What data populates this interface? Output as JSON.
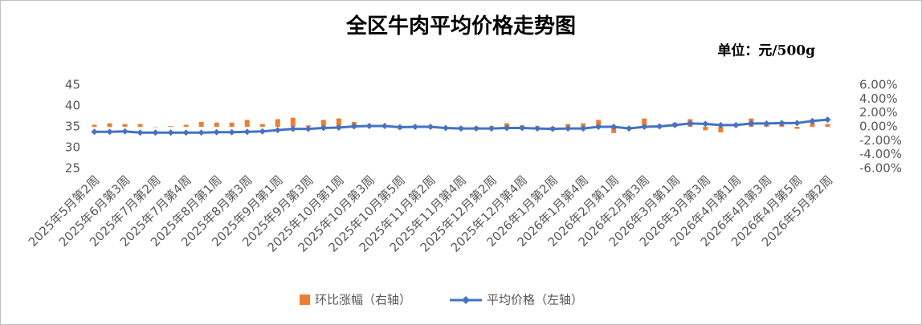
{
  "chart_data": {
    "type": "combo",
    "title": "全区牛肉平均价格走势图",
    "subtitle": "单位：元/500g",
    "categories": [
      "2025年5月第2周",
      null,
      "2025年6月第3周",
      null,
      "2025年7月第2周",
      null,
      "2025年7月第4周",
      null,
      "2025年8月第1周",
      null,
      "2025年8月第3周",
      null,
      "2025年9月第1周",
      null,
      "2025年9月第3周",
      null,
      "2025年10月第1周",
      null,
      "2025年10月第3周",
      null,
      "2025年10月第5周",
      null,
      "2025年11月第2周",
      null,
      "2025年11月第4周",
      null,
      "2025年12月第2周",
      null,
      "2025年12月第4周",
      null,
      "2026年1月第2周",
      null,
      "2026年1月第4周",
      null,
      "2026年2月第1周",
      null,
      "2026年2月第3周",
      null,
      "2026年3月第1周",
      null,
      "2026年3月第3周",
      null,
      "2026年4月第1周",
      null,
      "2026年4月第3周",
      null,
      "2026年4月第5周",
      null,
      "2026年5月第2周"
    ],
    "series": [
      {
        "name": "环比涨幅（右轴）",
        "type": "bar",
        "axis": "y2",
        "color": "#ed7d31",
        "values": [
          0.3,
          0.5,
          0.4,
          0.4,
          0.0,
          0.1,
          0.3,
          0.7,
          0.6,
          0.6,
          1.0,
          0.4,
          1.1,
          1.3,
          0.2,
          1.0,
          1.2,
          0.7,
          0.3,
          0.1,
          -0.3,
          0.1,
          0.0,
          -0.2,
          -0.1,
          0.0,
          0.1,
          0.5,
          0.2,
          0.1,
          -0.2,
          0.4,
          0.5,
          1.0,
          -0.9,
          -0.3,
          1.2,
          0.3,
          0.6,
          1.1,
          -0.5,
          -0.8,
          0.0,
          1.2,
          0.5,
          0.4,
          -0.3,
          0.6,
          0.4
        ]
      },
      {
        "name": "平均价格（左轴）",
        "type": "line",
        "axis": "y",
        "color": "#4472c4",
        "values": [
          33.8,
          33.8,
          33.9,
          33.6,
          33.6,
          33.6,
          33.6,
          33.6,
          33.7,
          33.7,
          33.8,
          33.9,
          34.2,
          34.5,
          34.5,
          34.7,
          34.8,
          35.1,
          35.2,
          35.2,
          34.9,
          35.0,
          35.0,
          34.7,
          34.6,
          34.6,
          34.6,
          34.7,
          34.7,
          34.6,
          34.5,
          34.6,
          34.6,
          35.0,
          35.0,
          34.6,
          35.0,
          35.1,
          35.4,
          35.8,
          35.7,
          35.4,
          35.4,
          35.8,
          35.8,
          35.9,
          35.9,
          36.4,
          36.7
        ]
      }
    ],
    "ylim": [
      25,
      45
    ],
    "yticks": [
      25,
      30,
      35,
      40,
      45
    ],
    "y2lim": [
      -6,
      6
    ],
    "y2ticks": [
      {
        "value": -6,
        "label": "-6.00%"
      },
      {
        "value": -4,
        "label": "-4.00%"
      },
      {
        "value": -2,
        "label": "-2.00%"
      },
      {
        "value": 0,
        "label": "0.00%"
      },
      {
        "value": 2,
        "label": "2.00%"
      },
      {
        "value": 4,
        "label": "4.00%"
      },
      {
        "value": 6,
        "label": "6.00%"
      }
    ],
    "grid": false,
    "legend": "bottom"
  }
}
